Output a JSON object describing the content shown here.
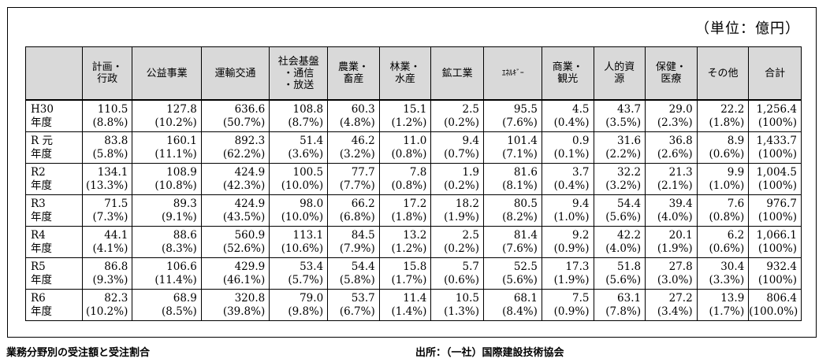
{
  "unit": "（単位：億円）",
  "headers": [
    [
      ""
    ],
    [
      "計画・",
      "行政"
    ],
    [
      "公益事業"
    ],
    [
      "運輸交通"
    ],
    [
      "社会基盤",
      "・通信",
      "・放送"
    ],
    [
      "農業・",
      "畜産"
    ],
    [
      "林業・",
      "水産"
    ],
    [
      "鉱工業"
    ],
    [
      "ｴﾈﾙｷﾞｰ"
    ],
    [
      "商業・",
      "観光"
    ],
    [
      "人的資",
      "源"
    ],
    [
      "保健・",
      "医療"
    ],
    [
      "その他"
    ],
    [
      "合計"
    ]
  ],
  "rows": [
    {
      "label": [
        "H30",
        "年度"
      ],
      "cells": [
        [
          "110.5",
          "(8.8%)"
        ],
        [
          "127.8",
          "(10.2%)"
        ],
        [
          "636.6",
          "(50.7%)"
        ],
        [
          "108.8",
          "(8.7%)"
        ],
        [
          "60.3",
          "(4.8%)"
        ],
        [
          "15.1",
          "(1.2%)"
        ],
        [
          "2.5",
          "(0.2%)"
        ],
        [
          "95.5",
          "(7.6%)"
        ],
        [
          "4.5",
          "(0.4%)"
        ],
        [
          "43.7",
          "(3.5%)"
        ],
        [
          "29.0",
          "(2.3%)"
        ],
        [
          "22.2",
          "(1.8%)"
        ],
        [
          "1,256.4",
          "(100%)"
        ]
      ]
    },
    {
      "label": [
        "R 元",
        "年度"
      ],
      "cells": [
        [
          "83.8",
          "(5.8%)"
        ],
        [
          "160.1",
          "(11.1%)"
        ],
        [
          "892.3",
          "(62.2%)"
        ],
        [
          "51.4",
          "(3.6%)"
        ],
        [
          "46.2",
          "(3.2%)"
        ],
        [
          "11.0",
          "(0.8%)"
        ],
        [
          "9.4",
          "(0.7%)"
        ],
        [
          "101.4",
          "(7.1%)"
        ],
        [
          "0.9",
          "(0.1%)"
        ],
        [
          "31.6",
          "(2.2%)"
        ],
        [
          "36.8",
          "(2.6%)"
        ],
        [
          "8.9",
          "(0.6%)"
        ],
        [
          "1,433.7",
          "(100%)"
        ]
      ]
    },
    {
      "label": [
        "R2",
        "年度"
      ],
      "cells": [
        [
          "134.1",
          "(13.3%)"
        ],
        [
          "108.9",
          "(10.8%)"
        ],
        [
          "424.9",
          "(42.3%)"
        ],
        [
          "100.5",
          "(10.0%)"
        ],
        [
          "77.7",
          "(7.7%)"
        ],
        [
          "7.8",
          "(0.8%)"
        ],
        [
          "1.9",
          "(0.2%)"
        ],
        [
          "81.6",
          "(8.1%)"
        ],
        [
          "3.7",
          "(0.4%)"
        ],
        [
          "32.2",
          "(3.2%)"
        ],
        [
          "21.3",
          "(2.1%)"
        ],
        [
          "9.9",
          "(1.0%)"
        ],
        [
          "1,004.5",
          "(100%)"
        ]
      ]
    },
    {
      "label": [
        "R3",
        "年度"
      ],
      "cells": [
        [
          "71.5",
          "(7.3%)"
        ],
        [
          "89.3",
          "(9.1%)"
        ],
        [
          "424.9",
          "(43.5%)"
        ],
        [
          "98.0",
          "(10.0%)"
        ],
        [
          "66.2",
          "(6.8%)"
        ],
        [
          "17.2",
          "(1.8%)"
        ],
        [
          "18.2",
          "(1.9%)"
        ],
        [
          "80.5",
          "(8.2%)"
        ],
        [
          "9.4",
          "(1.0%)"
        ],
        [
          "54.4",
          "(5.6%)"
        ],
        [
          "39.4",
          "(4.0%)"
        ],
        [
          "7.6",
          "(0.8%)"
        ],
        [
          "976.7",
          "(100%)"
        ]
      ]
    },
    {
      "label": [
        "R4",
        "年度"
      ],
      "cells": [
        [
          "44.1",
          "(4.1%)"
        ],
        [
          "88.6",
          "(8.3%)"
        ],
        [
          "560.9",
          "(52.6%)"
        ],
        [
          "113.1",
          "(10.6%)"
        ],
        [
          "84.5",
          "(7.9%)"
        ],
        [
          "13.2",
          "(1.2%)"
        ],
        [
          "2.5",
          "(0.2%)"
        ],
        [
          "81.4",
          "(7.6%)"
        ],
        [
          "9.2",
          "(0.9%)"
        ],
        [
          "42.2",
          "(4.0%)"
        ],
        [
          "20.1",
          "(1.9%)"
        ],
        [
          "6.2",
          "(0.6%)"
        ],
        [
          "1,066.1",
          "(100%)"
        ]
      ]
    },
    {
      "label": [
        "R5",
        "年度"
      ],
      "cells": [
        [
          "86.8",
          "(9.3%)"
        ],
        [
          "106.6",
          "(11.4%)"
        ],
        [
          "429.9",
          "(46.1%)"
        ],
        [
          "53.4",
          "(5.7%)"
        ],
        [
          "54.4",
          "(5.8%)"
        ],
        [
          "15.8",
          "(1.7%)"
        ],
        [
          "5.7",
          "(0.6%)"
        ],
        [
          "52.5",
          "(5.6%)"
        ],
        [
          "17.3",
          "(1.9%)"
        ],
        [
          "51.8",
          "(5.6%)"
        ],
        [
          "27.8",
          "(3.0%)"
        ],
        [
          "30.4",
          "(3.3%)"
        ],
        [
          "932.4",
          "(100%)"
        ]
      ]
    },
    {
      "label": [
        "R6",
        "年度"
      ],
      "cells": [
        [
          "82.3",
          "(10.2%)"
        ],
        [
          "68.9",
          "(8.5%)"
        ],
        [
          "320.8",
          "(39.8%)"
        ],
        [
          "79.0",
          "(9.8%)"
        ],
        [
          "53.7",
          "(6.7%)"
        ],
        [
          "11.4",
          "(1.4%)"
        ],
        [
          "10.5",
          "(1.3%)"
        ],
        [
          "68.1",
          "(8.4%)"
        ],
        [
          "7.5",
          "(0.9%)"
        ],
        [
          "63.1",
          "(7.8%)"
        ],
        [
          "27.2",
          "(3.4%)"
        ],
        [
          "13.9",
          "(1.7%)"
        ],
        [
          "806.4",
          "(100.0%)"
        ]
      ]
    }
  ],
  "footer": {
    "caption": "業務分野別の受注額と受注割合",
    "source": "出所：（一社）国際建設技術協会"
  },
  "colors": {
    "header_bg": "#d9d9d9",
    "border": "#000000"
  }
}
